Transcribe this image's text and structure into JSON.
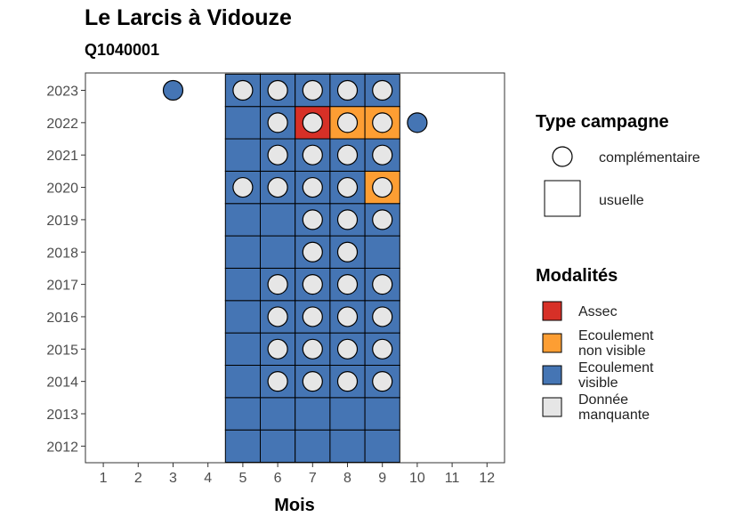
{
  "chart_data": {
    "type": "heatmap",
    "title": "Le Larcis à Vidouze",
    "subtitle": "Q1040001",
    "xlabel": "Mois",
    "ylabel": "",
    "x_categories": [
      "1",
      "2",
      "3",
      "4",
      "5",
      "6",
      "7",
      "8",
      "9",
      "10",
      "11",
      "12"
    ],
    "y_categories": [
      "2012",
      "2013",
      "2014",
      "2015",
      "2016",
      "2017",
      "2018",
      "2019",
      "2020",
      "2021",
      "2022",
      "2023"
    ],
    "colors": {
      "assec": "#d73027",
      "non_visible": "#fd9e33",
      "visible": "#4575b4",
      "manquante": "#e6e6e6"
    },
    "cells_usuelle": [
      {
        "year": 2012,
        "month": 5,
        "mod": "visible"
      },
      {
        "year": 2012,
        "month": 6,
        "mod": "visible"
      },
      {
        "year": 2012,
        "month": 7,
        "mod": "visible"
      },
      {
        "year": 2012,
        "month": 8,
        "mod": "visible"
      },
      {
        "year": 2012,
        "month": 9,
        "mod": "visible"
      },
      {
        "year": 2013,
        "month": 5,
        "mod": "visible"
      },
      {
        "year": 2013,
        "month": 6,
        "mod": "visible"
      },
      {
        "year": 2013,
        "month": 7,
        "mod": "visible"
      },
      {
        "year": 2013,
        "month": 8,
        "mod": "visible"
      },
      {
        "year": 2013,
        "month": 9,
        "mod": "visible"
      },
      {
        "year": 2014,
        "month": 5,
        "mod": "visible"
      },
      {
        "year": 2014,
        "month": 6,
        "mod": "visible"
      },
      {
        "year": 2014,
        "month": 7,
        "mod": "visible"
      },
      {
        "year": 2014,
        "month": 8,
        "mod": "visible"
      },
      {
        "year": 2014,
        "month": 9,
        "mod": "visible"
      },
      {
        "year": 2015,
        "month": 5,
        "mod": "visible"
      },
      {
        "year": 2015,
        "month": 6,
        "mod": "visible"
      },
      {
        "year": 2015,
        "month": 7,
        "mod": "visible"
      },
      {
        "year": 2015,
        "month": 8,
        "mod": "visible"
      },
      {
        "year": 2015,
        "month": 9,
        "mod": "visible"
      },
      {
        "year": 2016,
        "month": 5,
        "mod": "visible"
      },
      {
        "year": 2016,
        "month": 6,
        "mod": "visible"
      },
      {
        "year": 2016,
        "month": 7,
        "mod": "visible"
      },
      {
        "year": 2016,
        "month": 8,
        "mod": "visible"
      },
      {
        "year": 2016,
        "month": 9,
        "mod": "visible"
      },
      {
        "year": 2017,
        "month": 5,
        "mod": "visible"
      },
      {
        "year": 2017,
        "month": 6,
        "mod": "visible"
      },
      {
        "year": 2017,
        "month": 7,
        "mod": "visible"
      },
      {
        "year": 2017,
        "month": 8,
        "mod": "visible"
      },
      {
        "year": 2017,
        "month": 9,
        "mod": "visible"
      },
      {
        "year": 2018,
        "month": 5,
        "mod": "visible"
      },
      {
        "year": 2018,
        "month": 6,
        "mod": "visible"
      },
      {
        "year": 2018,
        "month": 7,
        "mod": "visible"
      },
      {
        "year": 2018,
        "month": 8,
        "mod": "visible"
      },
      {
        "year": 2018,
        "month": 9,
        "mod": "visible"
      },
      {
        "year": 2019,
        "month": 5,
        "mod": "visible"
      },
      {
        "year": 2019,
        "month": 6,
        "mod": "visible"
      },
      {
        "year": 2019,
        "month": 7,
        "mod": "visible"
      },
      {
        "year": 2019,
        "month": 8,
        "mod": "visible"
      },
      {
        "year": 2019,
        "month": 9,
        "mod": "visible"
      },
      {
        "year": 2020,
        "month": 5,
        "mod": "visible"
      },
      {
        "year": 2020,
        "month": 6,
        "mod": "visible"
      },
      {
        "year": 2020,
        "month": 7,
        "mod": "visible"
      },
      {
        "year": 2020,
        "month": 8,
        "mod": "visible"
      },
      {
        "year": 2020,
        "month": 9,
        "mod": "non_visible"
      },
      {
        "year": 2021,
        "month": 5,
        "mod": "visible"
      },
      {
        "year": 2021,
        "month": 6,
        "mod": "visible"
      },
      {
        "year": 2021,
        "month": 7,
        "mod": "visible"
      },
      {
        "year": 2021,
        "month": 8,
        "mod": "visible"
      },
      {
        "year": 2021,
        "month": 9,
        "mod": "visible"
      },
      {
        "year": 2022,
        "month": 5,
        "mod": "visible"
      },
      {
        "year": 2022,
        "month": 6,
        "mod": "visible"
      },
      {
        "year": 2022,
        "month": 7,
        "mod": "assec"
      },
      {
        "year": 2022,
        "month": 8,
        "mod": "non_visible"
      },
      {
        "year": 2022,
        "month": 9,
        "mod": "non_visible"
      },
      {
        "year": 2023,
        "month": 5,
        "mod": "visible"
      },
      {
        "year": 2023,
        "month": 6,
        "mod": "visible"
      },
      {
        "year": 2023,
        "month": 7,
        "mod": "visible"
      },
      {
        "year": 2023,
        "month": 8,
        "mod": "visible"
      },
      {
        "year": 2023,
        "month": 9,
        "mod": "visible"
      }
    ],
    "points_complementaire": [
      {
        "year": 2023,
        "month": 3,
        "mod": "visible"
      },
      {
        "year": 2023,
        "month": 5,
        "mod": "manquante"
      },
      {
        "year": 2023,
        "month": 6,
        "mod": "manquante"
      },
      {
        "year": 2023,
        "month": 7,
        "mod": "manquante"
      },
      {
        "year": 2023,
        "month": 8,
        "mod": "manquante"
      },
      {
        "year": 2023,
        "month": 9,
        "mod": "manquante"
      },
      {
        "year": 2022,
        "month": 6,
        "mod": "manquante"
      },
      {
        "year": 2022,
        "month": 7,
        "mod": "manquante"
      },
      {
        "year": 2022,
        "month": 8,
        "mod": "manquante"
      },
      {
        "year": 2022,
        "month": 9,
        "mod": "manquante"
      },
      {
        "year": 2022,
        "month": 10,
        "mod": "visible"
      },
      {
        "year": 2021,
        "month": 6,
        "mod": "manquante"
      },
      {
        "year": 2021,
        "month": 7,
        "mod": "manquante"
      },
      {
        "year": 2021,
        "month": 8,
        "mod": "manquante"
      },
      {
        "year": 2021,
        "month": 9,
        "mod": "manquante"
      },
      {
        "year": 2020,
        "month": 5,
        "mod": "manquante"
      },
      {
        "year": 2020,
        "month": 6,
        "mod": "manquante"
      },
      {
        "year": 2020,
        "month": 7,
        "mod": "manquante"
      },
      {
        "year": 2020,
        "month": 8,
        "mod": "manquante"
      },
      {
        "year": 2020,
        "month": 9,
        "mod": "manquante"
      },
      {
        "year": 2019,
        "month": 7,
        "mod": "manquante"
      },
      {
        "year": 2019,
        "month": 8,
        "mod": "manquante"
      },
      {
        "year": 2019,
        "month": 9,
        "mod": "manquante"
      },
      {
        "year": 2018,
        "month": 7,
        "mod": "manquante"
      },
      {
        "year": 2018,
        "month": 8,
        "mod": "manquante"
      },
      {
        "year": 2017,
        "month": 6,
        "mod": "manquante"
      },
      {
        "year": 2017,
        "month": 7,
        "mod": "manquante"
      },
      {
        "year": 2017,
        "month": 8,
        "mod": "manquante"
      },
      {
        "year": 2017,
        "month": 9,
        "mod": "manquante"
      },
      {
        "year": 2016,
        "month": 6,
        "mod": "manquante"
      },
      {
        "year": 2016,
        "month": 7,
        "mod": "manquante"
      },
      {
        "year": 2016,
        "month": 8,
        "mod": "manquante"
      },
      {
        "year": 2016,
        "month": 9,
        "mod": "manquante"
      },
      {
        "year": 2015,
        "month": 6,
        "mod": "manquante"
      },
      {
        "year": 2015,
        "month": 7,
        "mod": "manquante"
      },
      {
        "year": 2015,
        "month": 8,
        "mod": "manquante"
      },
      {
        "year": 2015,
        "month": 9,
        "mod": "manquante"
      },
      {
        "year": 2014,
        "month": 6,
        "mod": "manquante"
      },
      {
        "year": 2014,
        "month": 7,
        "mod": "manquante"
      },
      {
        "year": 2014,
        "month": 8,
        "mod": "manquante"
      },
      {
        "year": 2014,
        "month": 9,
        "mod": "manquante"
      }
    ],
    "legend": {
      "placement": "right",
      "type_title": "Type campagne",
      "type_items": [
        {
          "key": "complementaire",
          "label": "complémentaire",
          "shape": "circle"
        },
        {
          "key": "usuelle",
          "label": "usuelle",
          "shape": "square"
        }
      ],
      "mod_title": "Modalités",
      "mod_items": [
        {
          "key": "assec",
          "lines": [
            "Assec"
          ]
        },
        {
          "key": "non_visible",
          "lines": [
            "Ecoulement",
            "non visible"
          ]
        },
        {
          "key": "visible",
          "lines": [
            "Ecoulement",
            "visible"
          ]
        },
        {
          "key": "manquante",
          "lines": [
            "Donnée",
            "manquante"
          ]
        }
      ]
    }
  }
}
